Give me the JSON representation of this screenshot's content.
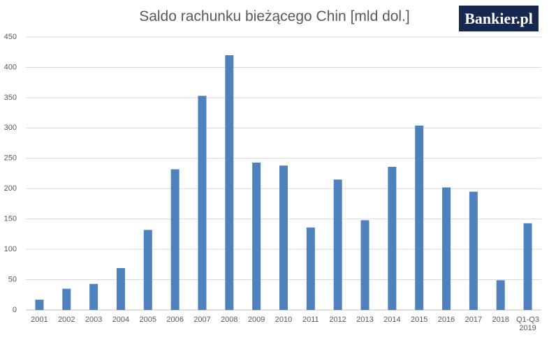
{
  "chart_data": {
    "type": "bar",
    "title": "Saldo rachunku bieżącego Chin [mld dol.]",
    "logo": "Bankier.pl",
    "categories": [
      "2001",
      "2002",
      "2003",
      "2004",
      "2005",
      "2006",
      "2007",
      "2008",
      "2009",
      "2010",
      "2011",
      "2012",
      "2013",
      "2014",
      "2015",
      "2016",
      "2017",
      "2018",
      "Q1-Q3 2019"
    ],
    "values": [
      17,
      35,
      43,
      69,
      132,
      232,
      353,
      420,
      243,
      238,
      136,
      215,
      148,
      236,
      304,
      202,
      195,
      49,
      143
    ],
    "color": "#4f81bd",
    "ylim": [
      0,
      450
    ],
    "yticks": [
      0,
      50,
      100,
      150,
      200,
      250,
      300,
      350,
      400,
      450
    ],
    "grid": true
  }
}
